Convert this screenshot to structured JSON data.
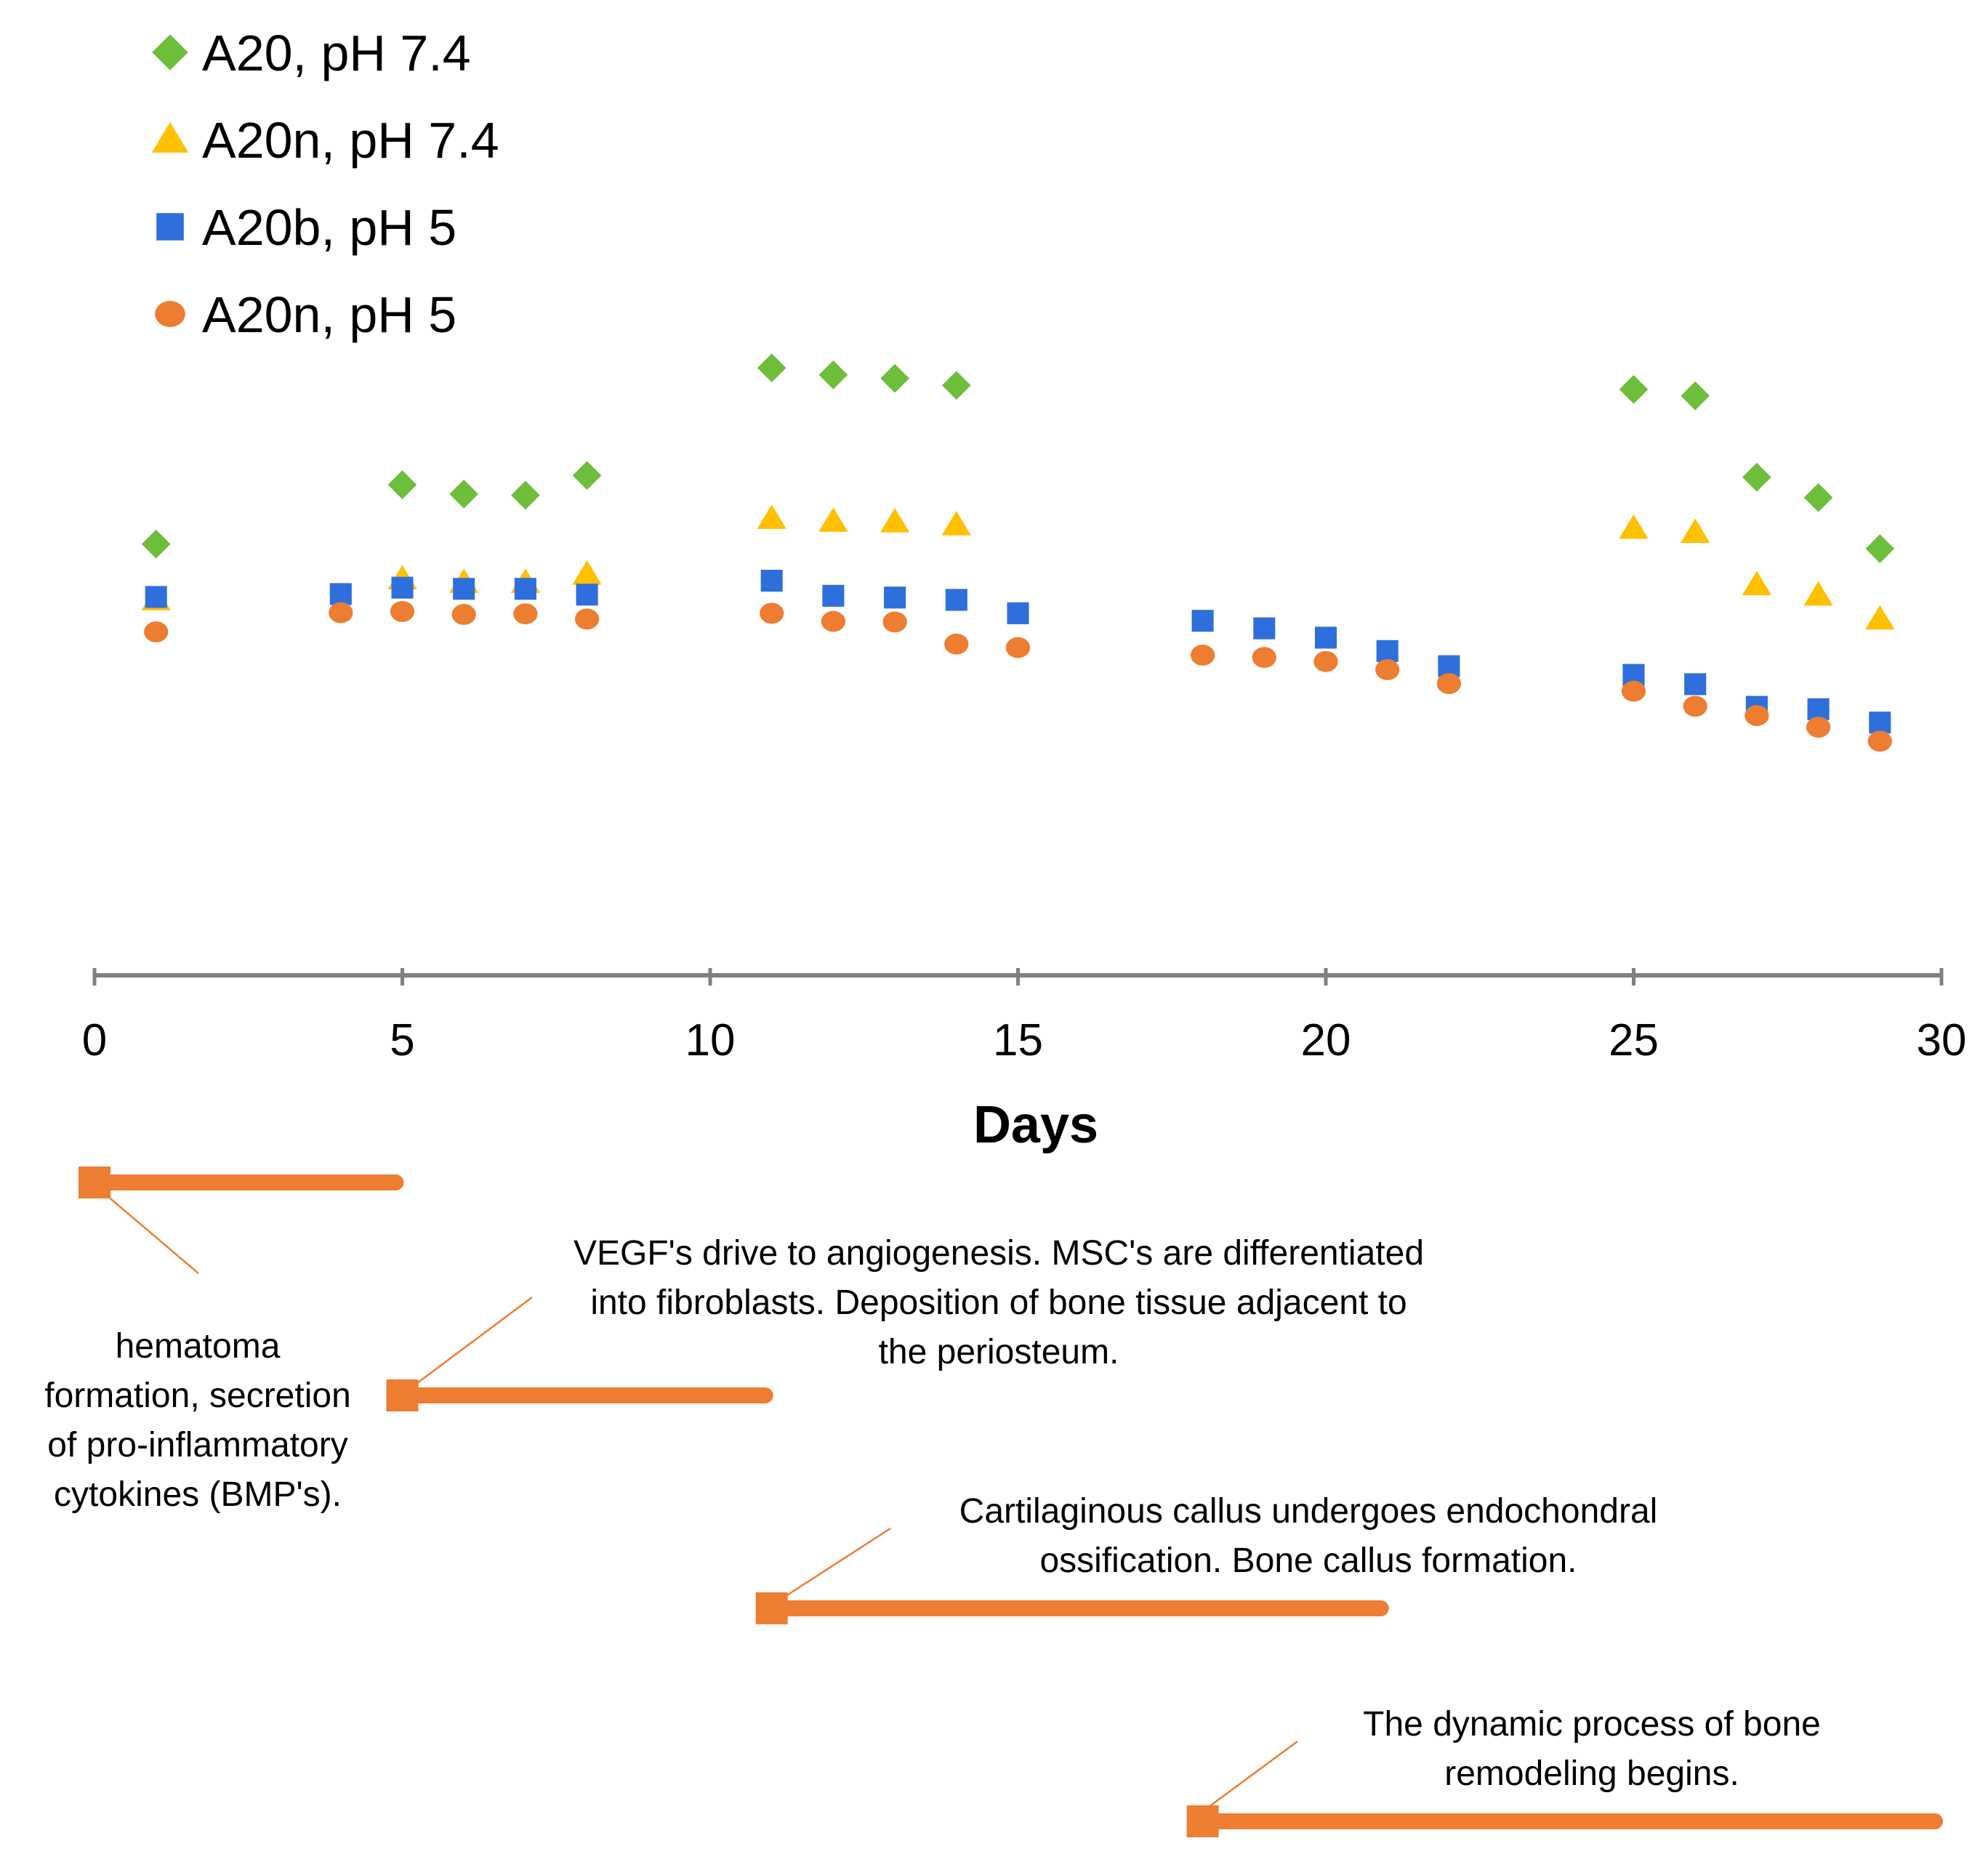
{
  "chart_data": {
    "type": "scatter",
    "title": "",
    "xlabel": "Days",
    "ylabel": "",
    "xlim": [
      0,
      30
    ],
    "xticks": [
      "0",
      "5",
      "10",
      "15",
      "20",
      "25",
      "30"
    ],
    "ylim": [
      0,
      100
    ],
    "grid": false,
    "legend_position": "top-left",
    "series": [
      {
        "name": "A20, pH 7.4",
        "marker": "diamond",
        "color": "#6dbf3b",
        "x": [
          1,
          5,
          6,
          7,
          8,
          11,
          12,
          13,
          14,
          25,
          26,
          27,
          28,
          29
        ],
        "y": [
          69.3,
          79.5,
          77.9,
          77.7,
          81.1,
          99.6,
          98.4,
          97.8,
          96.6,
          95.9,
          94.8,
          80.8,
          77.3,
          68.5
        ]
      },
      {
        "name": "A20n, pH 7.4",
        "marker": "triangle",
        "color": "#ffc000",
        "x": [
          1,
          5,
          6,
          7,
          8,
          11,
          12,
          13,
          14,
          25,
          26,
          27,
          28,
          29
        ],
        "y": [
          59.7,
          63.3,
          62.7,
          62.7,
          64.1,
          73.7,
          73.2,
          73.1,
          72.6,
          72.0,
          71.3,
          62.3,
          60.5,
          56.4
        ]
      },
      {
        "name": "A20b, pH 5",
        "marker": "square",
        "color": "#2f6fdb",
        "x": [
          1,
          4,
          5,
          6,
          7,
          8,
          11,
          12,
          13,
          14,
          15,
          18,
          19,
          20,
          21,
          22,
          25,
          26,
          27,
          28,
          29
        ],
        "y": [
          60.2,
          60.7,
          61.8,
          61.6,
          61.6,
          60.6,
          63.0,
          60.4,
          60.1,
          59.7,
          57.4,
          56.1,
          54.8,
          53.2,
          50.9,
          48.3,
          46.8,
          45.2,
          41.3,
          40.9,
          38.6
        ]
      },
      {
        "name": "A20n, pH 5",
        "marker": "circle",
        "color": "#ed7d31",
        "x": [
          1,
          4,
          5,
          6,
          7,
          8,
          11,
          12,
          13,
          14,
          15,
          18,
          19,
          20,
          21,
          22,
          25,
          26,
          27,
          28,
          29
        ],
        "y": [
          54.2,
          57.5,
          57.7,
          57.2,
          57.3,
          56.4,
          57.4,
          56.0,
          55.9,
          52.1,
          51.5,
          50.2,
          49.8,
          49.1,
          47.7,
          45.3,
          44.0,
          41.4,
          39.8,
          37.8,
          35.4
        ]
      }
    ],
    "timeline": [
      {
        "start_day": 0,
        "end_day": 5,
        "label_lines": [
          "hematoma",
          "formation, secretion",
          "of pro-inflammatory",
          "cytokines (BMP's)."
        ]
      },
      {
        "start_day": 5,
        "end_day": 11,
        "label_lines": [
          "VEGF's drive to angiogenesis. MSC's are differentiated",
          "into fibroblasts. Deposition of bone tissue adjacent to",
          "the periosteum."
        ]
      },
      {
        "start_day": 11,
        "end_day": 21,
        "label_lines": [
          "Cartilaginous callus undergoes endochondral",
          "ossification. Bone callus formation."
        ]
      },
      {
        "start_day": 18,
        "end_day": 30,
        "label_lines": [
          "The dynamic process of bone",
          "remodeling begins."
        ]
      }
    ],
    "timeline_color": "#ed7d31"
  }
}
